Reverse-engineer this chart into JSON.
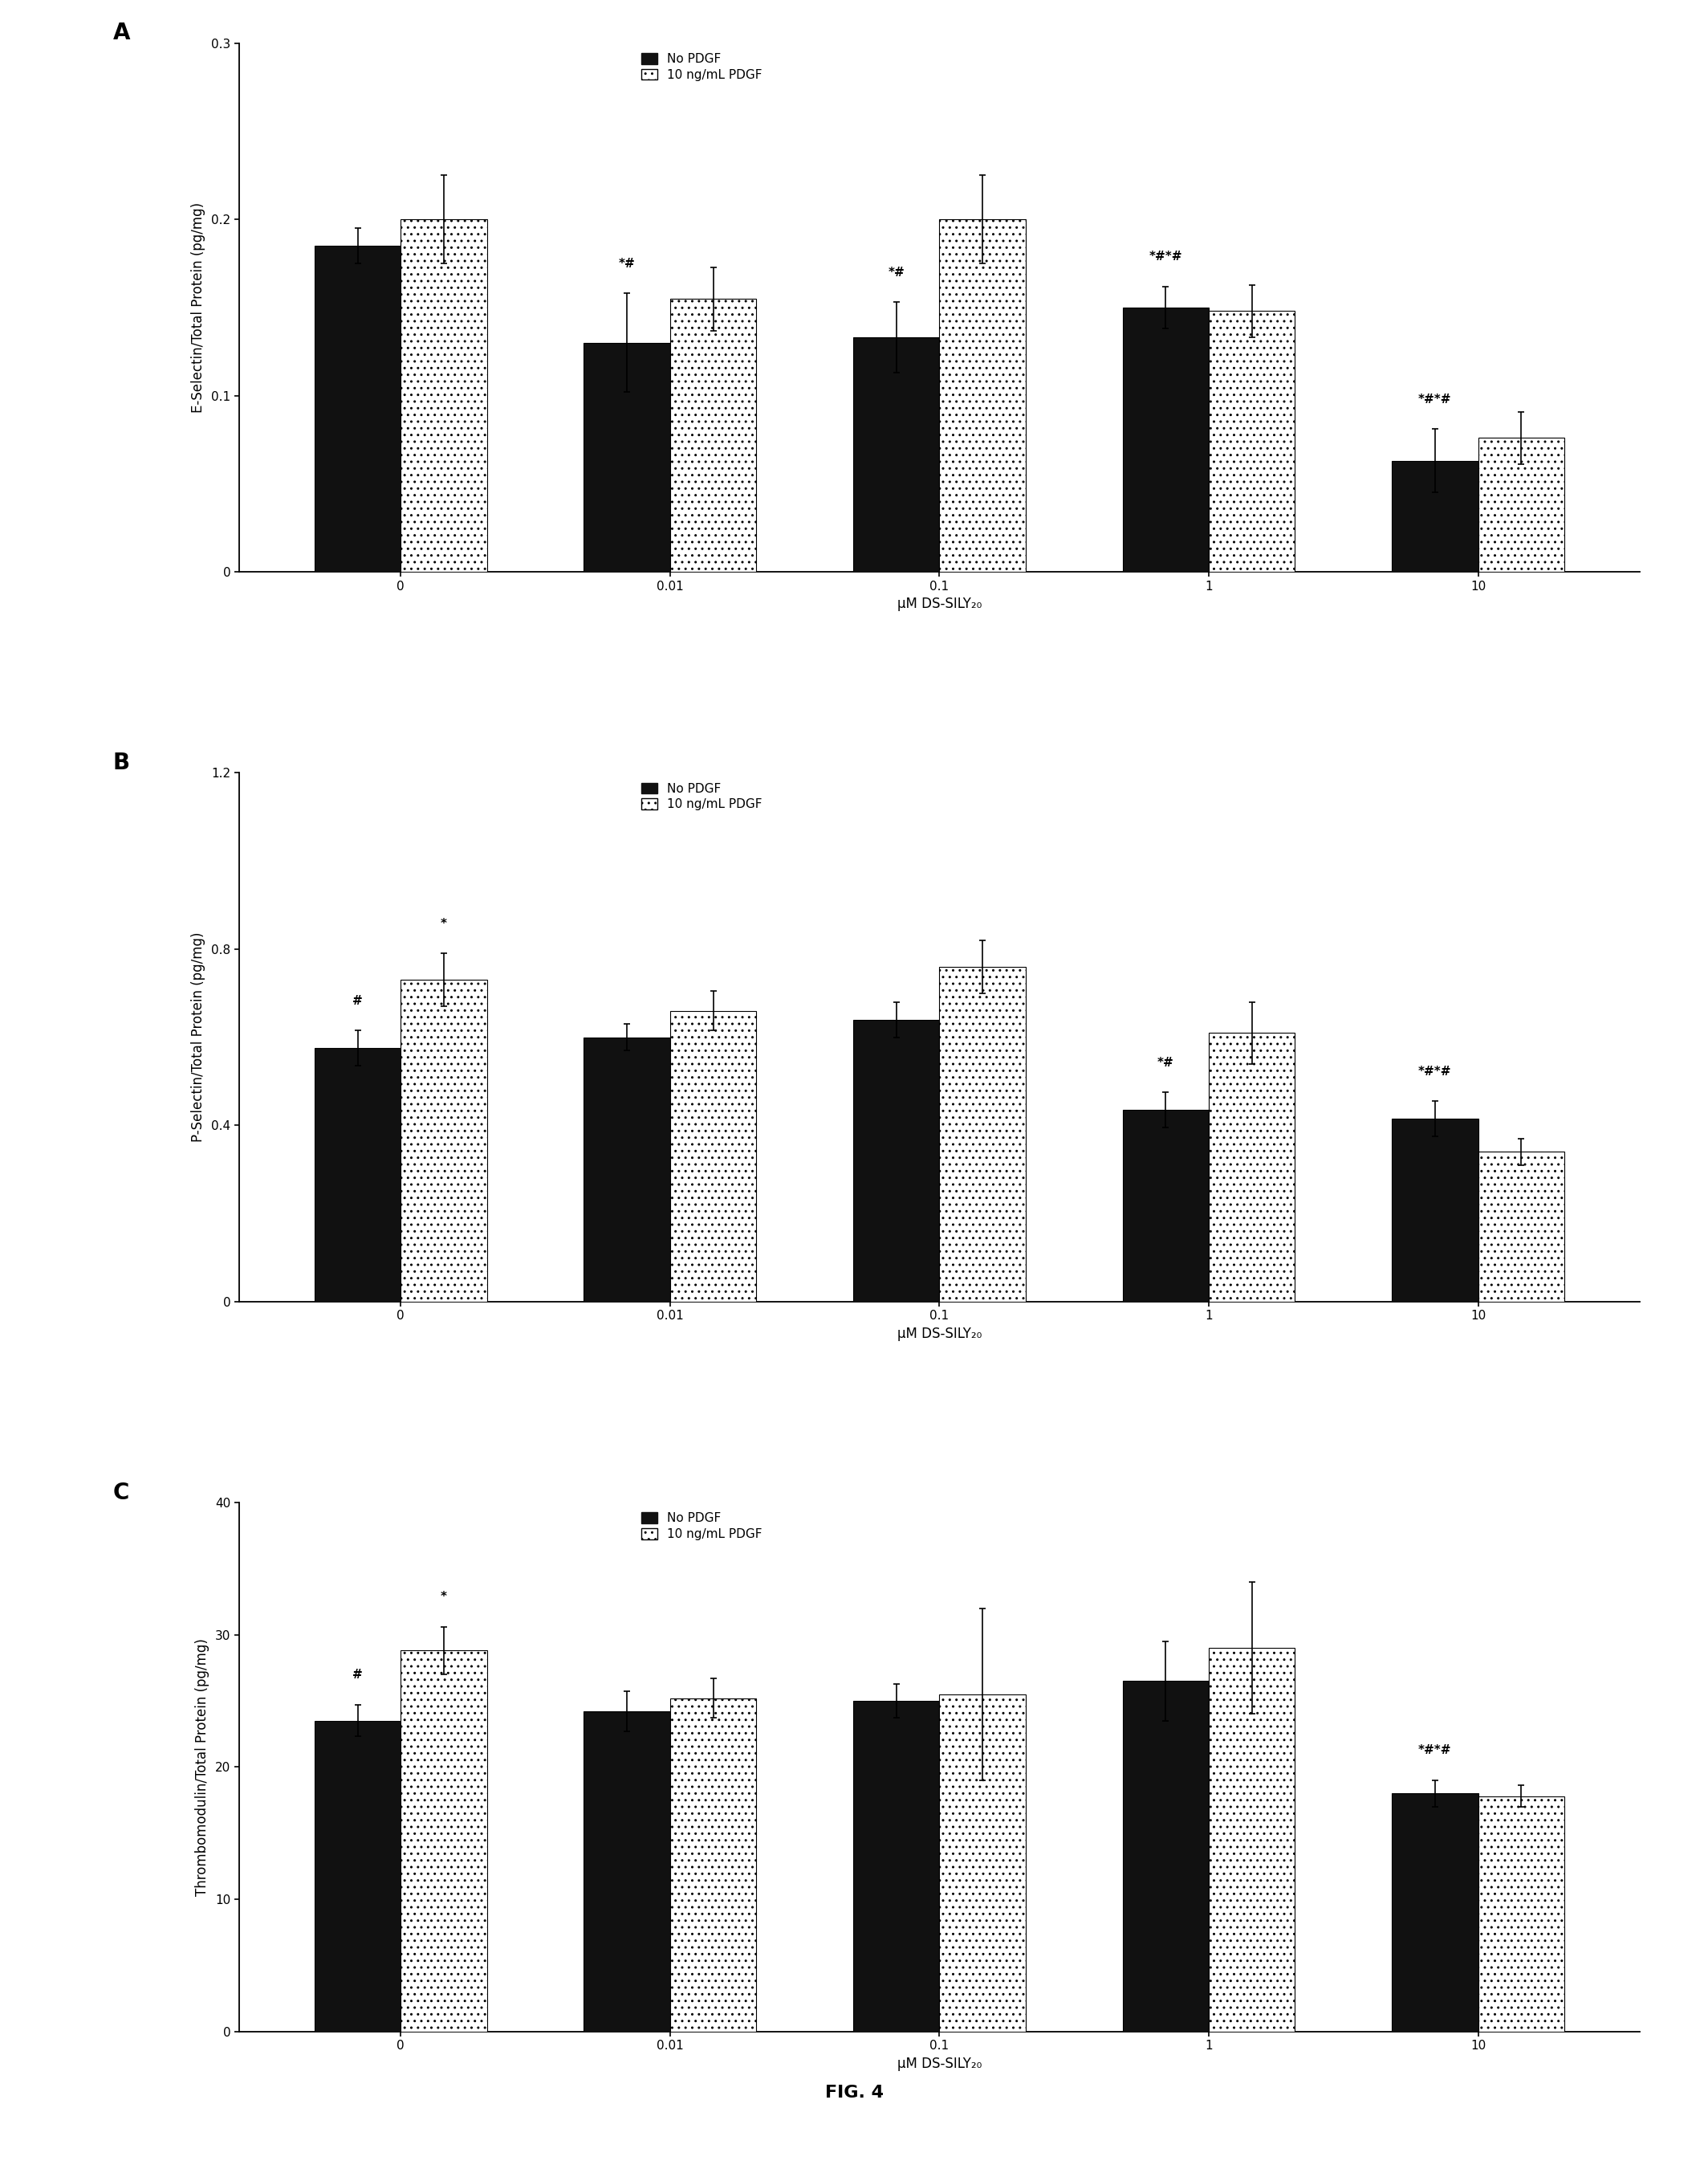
{
  "fig_label": "FIG. 4",
  "background_color": "#ffffff",
  "panel_A": {
    "label": "A",
    "ylabel": "E-Selectin/Total Protein (pg/mg)",
    "xlabel": "μM DS-SILY₂₀",
    "ylim": [
      0,
      0.3
    ],
    "yticks": [
      0,
      0.1,
      0.2,
      0.3
    ],
    "ytick_labels": [
      "0",
      "0.1",
      "0.2",
      "0.3"
    ],
    "categories": [
      "0",
      "0.01",
      "0.1",
      "1",
      "10"
    ],
    "no_pdgf_values": [
      0.185,
      0.13,
      0.133,
      0.15,
      0.063
    ],
    "no_pdgf_errors": [
      0.01,
      0.028,
      0.02,
      0.012,
      0.018
    ],
    "pdgf_values": [
      0.2,
      0.155,
      0.2,
      0.148,
      0.076
    ],
    "pdgf_errors": [
      0.025,
      0.018,
      0.025,
      0.015,
      0.015
    ],
    "black_ann": [
      "",
      "*,#",
      "*,#",
      "*,#,*,#",
      "*,#,*,#"
    ],
    "gray_ann": [
      "",
      "",
      "",
      "",
      ""
    ]
  },
  "panel_B": {
    "label": "B",
    "ylabel": "P-Selectin/Total Protein (pg/mg)",
    "xlabel": "μM DS-SILY₂₀",
    "ylim": [
      0,
      1.2
    ],
    "yticks": [
      0,
      0.4,
      0.8,
      1.2
    ],
    "ytick_labels": [
      "0",
      "0.4",
      "0.8",
      "1.2"
    ],
    "categories": [
      "0",
      "0.01",
      "0.1",
      "1",
      "10"
    ],
    "no_pdgf_values": [
      0.575,
      0.6,
      0.64,
      0.435,
      0.415
    ],
    "no_pdgf_errors": [
      0.04,
      0.03,
      0.04,
      0.04,
      0.04
    ],
    "pdgf_values": [
      0.73,
      0.66,
      0.76,
      0.61,
      0.34
    ],
    "pdgf_errors": [
      0.06,
      0.045,
      0.06,
      0.07,
      0.03
    ],
    "black_ann": [
      "#",
      "",
      "",
      "*,#",
      "*,#,*,#"
    ],
    "gray_ann": [
      "*",
      "",
      "",
      "",
      ""
    ]
  },
  "panel_C": {
    "label": "C",
    "ylabel": "Thrombomodulin/Total Protein (pg/mg)",
    "xlabel": "μM DS-SILY₂₀",
    "ylim": [
      0,
      40
    ],
    "yticks": [
      0,
      10,
      20,
      30,
      40
    ],
    "ytick_labels": [
      "0",
      "10",
      "20",
      "30",
      "40"
    ],
    "categories": [
      "0",
      "0.01",
      "0.1",
      "1",
      "10"
    ],
    "no_pdgf_values": [
      23.5,
      24.2,
      25.0,
      26.5,
      18.0
    ],
    "no_pdgf_errors": [
      1.2,
      1.5,
      1.3,
      3.0,
      1.0
    ],
    "pdgf_values": [
      28.8,
      25.2,
      25.5,
      29.0,
      17.8
    ],
    "pdgf_errors": [
      1.8,
      1.5,
      6.5,
      5.0,
      0.8
    ],
    "black_ann": [
      "#",
      "",
      "",
      "",
      "*,#,*,#"
    ],
    "gray_ann": [
      "*",
      "",
      "",
      "",
      ""
    ]
  },
  "bar_width": 0.32,
  "bar_color_black": "#111111",
  "bar_hatch_gray": "..",
  "bar_edge_gray": "#555555",
  "legend_labels": [
    "No PDGF",
    "10 ng/mL PDGF"
  ],
  "capsize": 3,
  "fontsize_label": 12,
  "fontsize_tick": 11,
  "fontsize_panel": 20,
  "fontsize_legend": 11,
  "fontsize_ann": 11,
  "fontsize_fig_label": 16
}
